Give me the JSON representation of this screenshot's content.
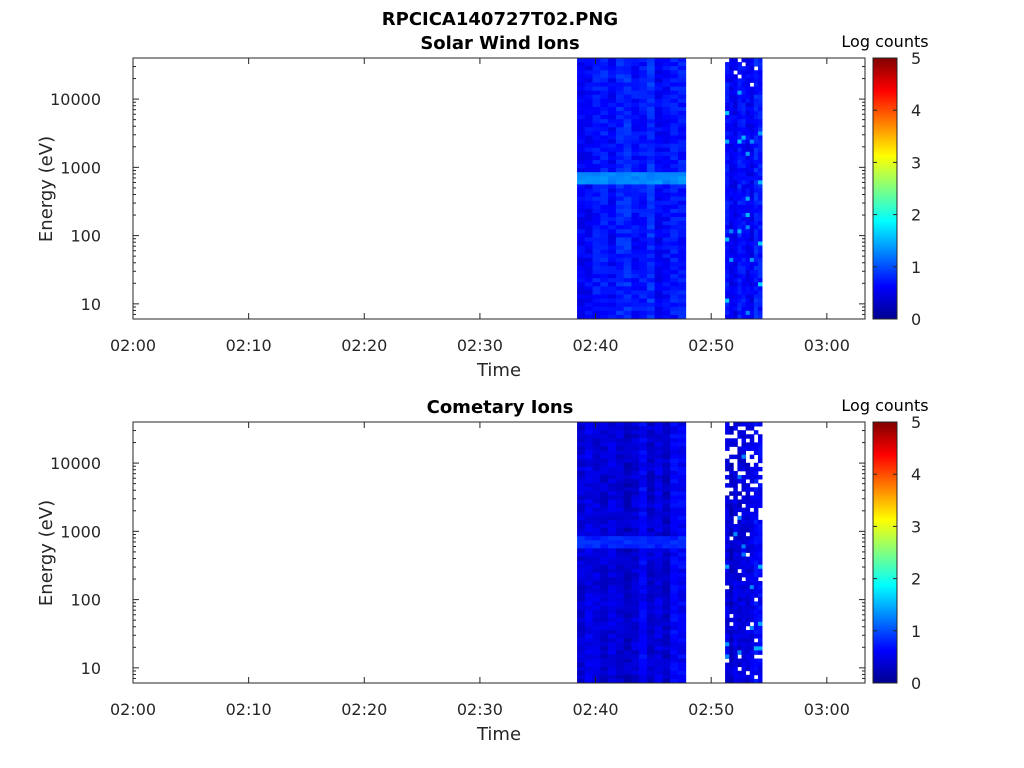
{
  "figure_title": "RPCICA140727T02.PNG",
  "colors": {
    "colormap": [
      "#00008f",
      "#0000ff",
      "#0080ff",
      "#00ffff",
      "#80ff80",
      "#ffff00",
      "#ff8000",
      "#ff0000",
      "#800000"
    ],
    "axes": "#262626",
    "background": "#ffffff"
  },
  "chart_data": [
    {
      "type": "heatmap",
      "title": "Solar Wind Ions",
      "xlabel": "Time",
      "ylabel": "Energy (eV)",
      "x_tick_labels": [
        "02:00",
        "02:10",
        "02:20",
        "02:30",
        "02:40",
        "02:50",
        "03:00"
      ],
      "x_tick_minutes": [
        0,
        10,
        20,
        30,
        40,
        50,
        60
      ],
      "xlim_minutes": [
        0,
        63.3
      ],
      "y_tick_labels": [
        "10",
        "100",
        "1000",
        "10000"
      ],
      "y_tick_values": [
        10,
        100,
        1000,
        10000
      ],
      "yscale": "log",
      "ylim": [
        6,
        40000
      ],
      "colorbar": {
        "label": "Log counts",
        "ticks": [
          "0",
          "1",
          "2",
          "3",
          "4",
          "5"
        ],
        "range": [
          0,
          5
        ]
      },
      "data_blocks": [
        {
          "start_min": 38.4,
          "end_min": 47.8,
          "level": 0.75
        },
        {
          "start_min": 51.2,
          "end_min": 54.4,
          "level": 0.7
        }
      ],
      "bands": [
        {
          "energy_ev": 700,
          "start_min": 38.4,
          "end_min": 47.8,
          "level": 1.3
        }
      ]
    },
    {
      "type": "heatmap",
      "title": "Cometary Ions",
      "xlabel": "Time",
      "ylabel": "Energy (eV)",
      "x_tick_labels": [
        "02:00",
        "02:10",
        "02:20",
        "02:30",
        "02:40",
        "02:50",
        "03:00"
      ],
      "x_tick_minutes": [
        0,
        10,
        20,
        30,
        40,
        50,
        60
      ],
      "xlim_minutes": [
        0,
        63.3
      ],
      "y_tick_labels": [
        "10",
        "100",
        "1000",
        "10000"
      ],
      "y_tick_values": [
        10,
        100,
        1000,
        10000
      ],
      "yscale": "log",
      "ylim": [
        6,
        40000
      ],
      "colorbar": {
        "label": "Log counts",
        "ticks": [
          "0",
          "1",
          "2",
          "3",
          "4",
          "5"
        ],
        "range": [
          0,
          5
        ]
      },
      "data_blocks": [
        {
          "start_min": 38.4,
          "end_min": 47.8,
          "level": 0.45
        },
        {
          "start_min": 51.2,
          "end_min": 54.4,
          "level": 0.45
        }
      ],
      "bands": [
        {
          "energy_ev": 700,
          "start_min": 38.4,
          "end_min": 47.8,
          "level": 0.8
        }
      ]
    }
  ]
}
